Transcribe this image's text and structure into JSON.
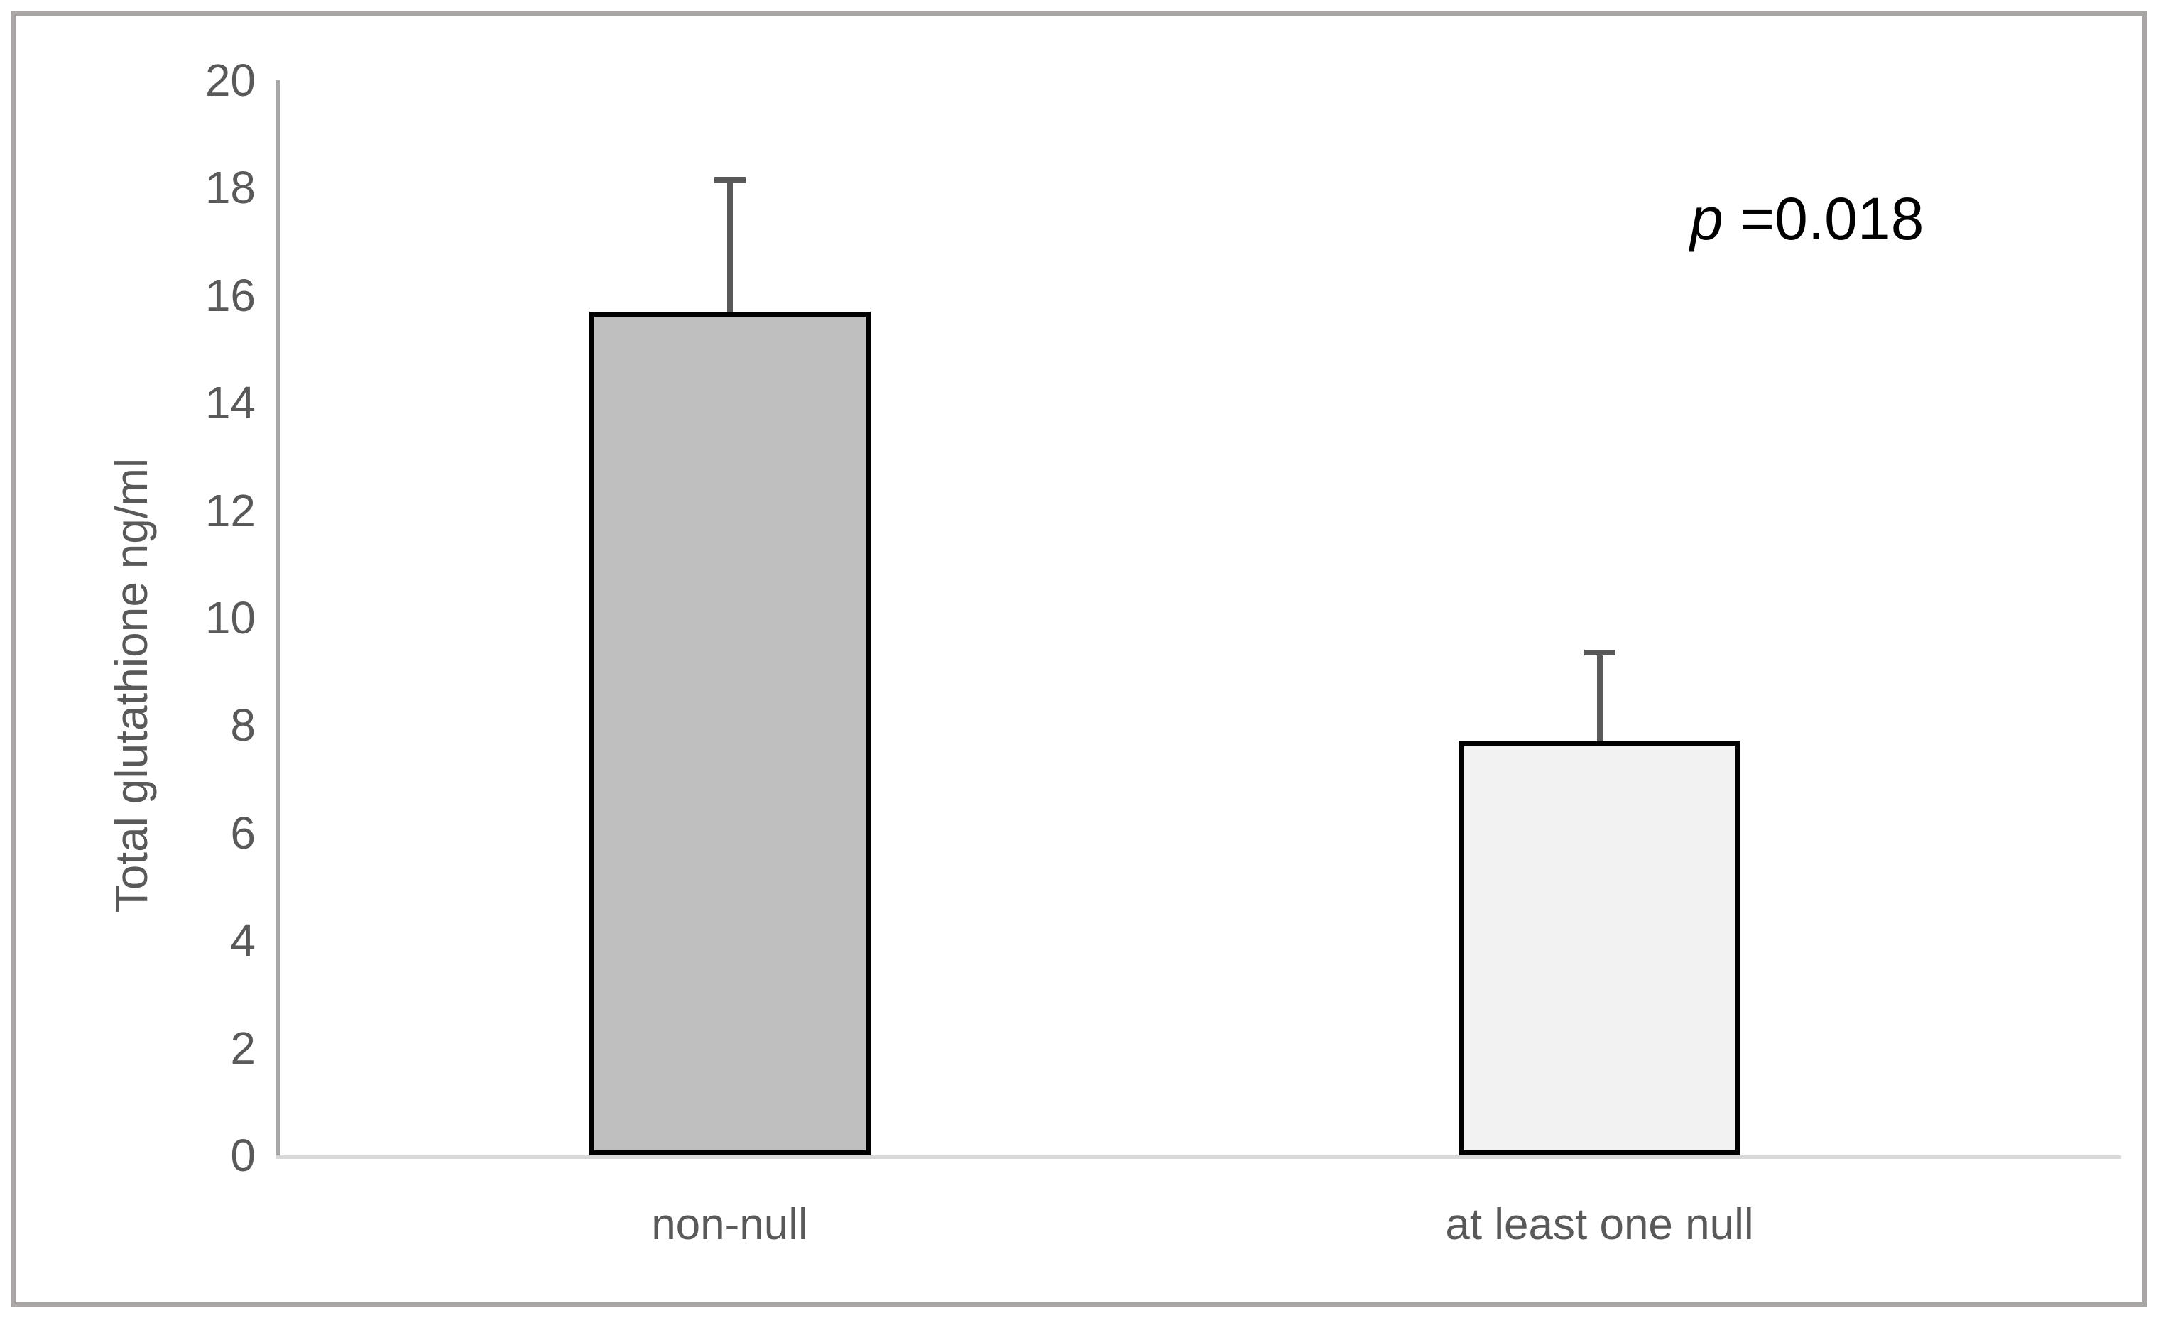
{
  "frame": {
    "border_color": "#a9a5a5",
    "background": "#ffffff"
  },
  "annotation": {
    "prefix_italic": "p",
    "rest": " =0.018",
    "full_text": "p =0.018",
    "color": "#000000"
  },
  "chart_data": {
    "type": "bar",
    "categories": [
      "non-null",
      "at least one null"
    ],
    "values": [
      15.7,
      7.7
    ],
    "errors_plus": [
      2.5,
      1.7
    ],
    "error_tops": [
      18.2,
      9.4
    ],
    "title": "",
    "xlabel": "",
    "ylabel": "Total glutathione ng/ml",
    "ylim": [
      0,
      20
    ],
    "yticks": [
      0,
      2,
      4,
      6,
      8,
      10,
      12,
      14,
      16,
      18,
      20
    ],
    "grid": false,
    "legend": false,
    "annotation": "p =0.018",
    "bar_fill_colors": [
      "#bfbfbf",
      "#f2f2f2"
    ],
    "bar_border_color": "#000000",
    "error_bar_color": "#595959",
    "axis_line_color": "#a6a6a6",
    "baseline_color": "#d9d9d9",
    "text_color": "#595959"
  }
}
